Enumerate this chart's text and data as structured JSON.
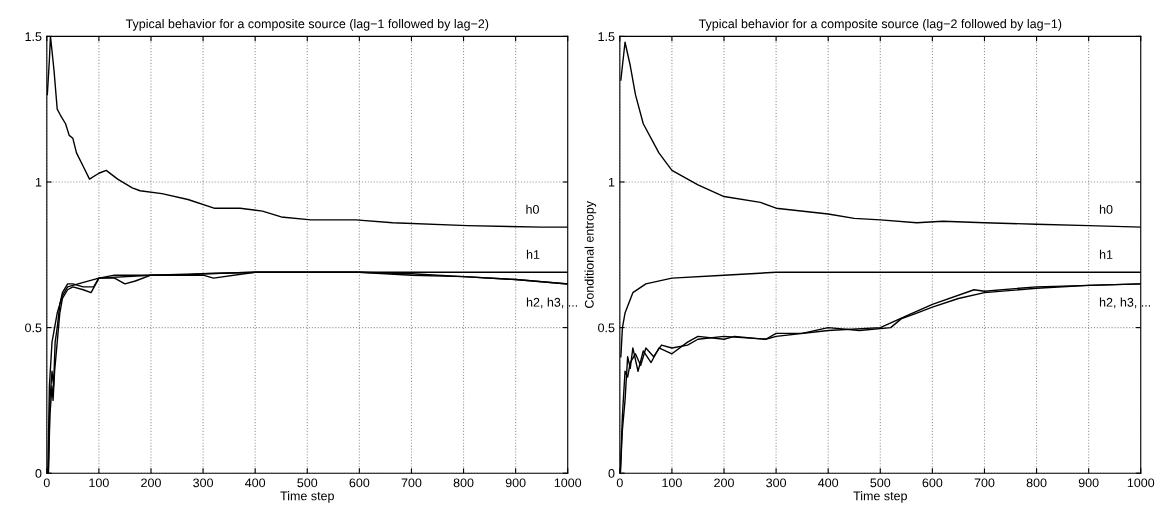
{
  "chart_data": [
    {
      "type": "line",
      "title": "Typical behavior for a composite source (lag−1 followed by lag−2)",
      "xlabel": "Time step",
      "xlim": [
        0,
        1000
      ],
      "xticks": [
        0,
        100,
        200,
        300,
        400,
        500,
        600,
        700,
        800,
        900,
        1000
      ],
      "ylim": [
        0,
        1.5
      ],
      "yticks": [
        0,
        0.5,
        1,
        1.5
      ],
      "grid": true,
      "legend": false,
      "series": [
        {
          "name": "h0",
          "color": "#000000",
          "x": [
            1,
            5,
            7,
            10,
            14,
            20,
            26,
            36,
            43,
            50,
            57,
            71,
            82,
            100,
            114,
            136,
            164,
            179,
            221,
            271,
            321,
            371,
            414,
            450,
            507,
            593,
            664,
            807,
            950,
            999
          ],
          "values": [
            1.3,
            1.42,
            1.5,
            1.45,
            1.38,
            1.25,
            1.23,
            1.2,
            1.16,
            1.15,
            1.1,
            1.05,
            1.01,
            1.03,
            1.04,
            1.01,
            0.98,
            0.97,
            0.96,
            0.94,
            0.91,
            0.91,
            0.9,
            0.88,
            0.87,
            0.87,
            0.86,
            0.85,
            0.845,
            0.845
          ]
        },
        {
          "name": "h1",
          "color": "#000000",
          "x": [
            2,
            5,
            10,
            20,
            30,
            40,
            60,
            100,
            200,
            400,
            700,
            1000
          ],
          "values": [
            0,
            0.3,
            0.45,
            0.55,
            0.61,
            0.64,
            0.65,
            0.67,
            0.68,
            0.69,
            0.69,
            0.69
          ]
        },
        {
          "name": "h2, h3, ...",
          "color": "#000000",
          "x": [
            3,
            6,
            10,
            12,
            15,
            20,
            25,
            30,
            40,
            50,
            70,
            85,
            100,
            130,
            150,
            170,
            200,
            250,
            300,
            320,
            400,
            500,
            600,
            700,
            800,
            900,
            1000
          ],
          "values": [
            0,
            0.2,
            0.3,
            0.25,
            0.35,
            0.45,
            0.55,
            0.6,
            0.63,
            0.64,
            0.63,
            0.62,
            0.67,
            0.67,
            0.65,
            0.66,
            0.68,
            0.68,
            0.68,
            0.67,
            0.69,
            0.69,
            0.69,
            0.68,
            0.675,
            0.665,
            0.65
          ]
        },
        {
          "color": "#000000",
          "x": [
            3,
            6,
            10,
            13,
            16,
            20,
            25,
            30,
            40,
            50,
            70,
            90,
            100,
            130,
            160,
            200,
            260,
            300,
            400,
            500,
            600,
            700,
            800,
            900,
            1000
          ],
          "values": [
            0,
            0.25,
            0.35,
            0.3,
            0.45,
            0.5,
            0.58,
            0.62,
            0.65,
            0.65,
            0.64,
            0.64,
            0.67,
            0.68,
            0.68,
            0.68,
            0.68,
            0.685,
            0.69,
            0.69,
            0.69,
            0.685,
            0.675,
            0.665,
            0.65
          ]
        }
      ]
    },
    {
      "type": "line",
      "title": "Typical behavior for a composite source (lag−2 followed by lag−1)",
      "xlabel": "Time step",
      "ylabel": "Conditional entropy",
      "xlim": [
        0,
        1000
      ],
      "xticks": [
        0,
        100,
        200,
        300,
        400,
        500,
        600,
        700,
        800,
        900,
        1000
      ],
      "ylim": [
        0,
        1.5
      ],
      "yticks": [
        0,
        0.5,
        1,
        1.5
      ],
      "grid": true,
      "legend": false,
      "series": [
        {
          "name": "h0",
          "color": "#000000",
          "x": [
            2,
            10,
            20,
            30,
            45,
            75,
            100,
            150,
            200,
            270,
            300,
            400,
            450,
            500,
            570,
            620,
            700,
            800,
            900,
            1000
          ],
          "values": [
            1.35,
            1.48,
            1.4,
            1.3,
            1.2,
            1.1,
            1.04,
            0.99,
            0.95,
            0.93,
            0.91,
            0.89,
            0.875,
            0.87,
            0.86,
            0.865,
            0.86,
            0.855,
            0.85,
            0.845
          ]
        },
        {
          "name": "h1",
          "color": "#000000",
          "x": [
            2,
            5,
            10,
            25,
            50,
            100,
            200,
            300,
            600,
            1000
          ],
          "values": [
            0.4,
            0.5,
            0.55,
            0.62,
            0.65,
            0.67,
            0.68,
            0.69,
            0.69,
            0.69
          ]
        },
        {
          "name": "h2, h3, ...",
          "color": "#000000",
          "x": [
            1,
            5,
            10,
            15,
            20,
            25,
            35,
            45,
            60,
            75,
            100,
            130,
            150,
            200,
            220,
            280,
            300,
            350,
            400,
            460,
            520,
            540,
            570,
            600,
            650,
            700,
            800,
            900,
            1000
          ],
          "values": [
            0,
            0.15,
            0.25,
            0.4,
            0.36,
            0.43,
            0.35,
            0.42,
            0.38,
            0.43,
            0.41,
            0.45,
            0.47,
            0.46,
            0.47,
            0.46,
            0.48,
            0.48,
            0.5,
            0.49,
            0.5,
            0.53,
            0.55,
            0.57,
            0.6,
            0.62,
            0.635,
            0.645,
            0.65
          ]
        },
        {
          "color": "#000000",
          "x": [
            1,
            5,
            10,
            15,
            20,
            30,
            40,
            50,
            65,
            80,
            100,
            130,
            150,
            200,
            280,
            300,
            400,
            500,
            550,
            600,
            680,
            700,
            800,
            900,
            1000
          ],
          "values": [
            0,
            0.2,
            0.35,
            0.33,
            0.38,
            0.41,
            0.37,
            0.43,
            0.4,
            0.44,
            0.43,
            0.44,
            0.46,
            0.47,
            0.46,
            0.47,
            0.49,
            0.5,
            0.54,
            0.58,
            0.63,
            0.625,
            0.64,
            0.645,
            0.65
          ]
        }
      ]
    }
  ]
}
